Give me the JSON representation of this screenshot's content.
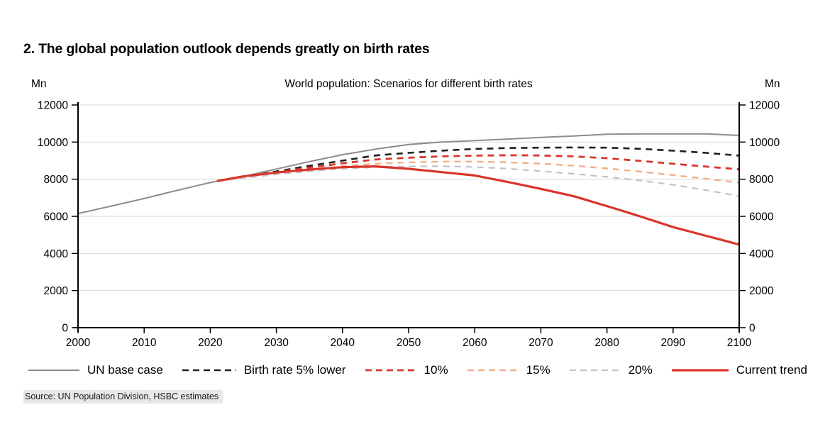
{
  "page": {
    "title": "2. The global population outlook depends greatly on birth rates",
    "source": "Source: UN Population Division, HSBC estimates"
  },
  "chart_data": {
    "type": "line",
    "title": "World population: Scenarios for different birth rates",
    "unit_left": "Mn",
    "unit_right": "Mn",
    "xlabel": "",
    "ylabel": "Mn",
    "xlim": [
      2000,
      2100
    ],
    "ylim": [
      0,
      12000
    ],
    "x_ticks": [
      2000,
      2010,
      2020,
      2030,
      2040,
      2050,
      2060,
      2070,
      2080,
      2090,
      2100
    ],
    "y_ticks": [
      0,
      2000,
      4000,
      6000,
      8000,
      10000,
      12000
    ],
    "grid": "horizontal",
    "grid_color": "#d9d9d9",
    "axis_color": "#000000",
    "legend_position": "bottom",
    "series": [
      {
        "name": "UN base case",
        "color": "#8c8c8c",
        "style": "solid",
        "width": 2,
        "x": [
          2000,
          2005,
          2010,
          2015,
          2020,
          2025,
          2030,
          2035,
          2040,
          2045,
          2050,
          2055,
          2060,
          2065,
          2070,
          2075,
          2080,
          2085,
          2090,
          2095,
          2100
        ],
        "values": [
          6150,
          6550,
          6960,
          7400,
          7820,
          8150,
          8550,
          8950,
          9320,
          9620,
          9870,
          10000,
          10080,
          10160,
          10250,
          10330,
          10420,
          10440,
          10440,
          10440,
          10360
        ]
      },
      {
        "name": "Birth rate 5% lower",
        "color": "#1f1f1f",
        "style": "dashed",
        "width": 2.6,
        "x": [
          2021,
          2025,
          2030,
          2035,
          2040,
          2045,
          2050,
          2055,
          2060,
          2065,
          2070,
          2075,
          2080,
          2085,
          2090,
          2095,
          2100
        ],
        "values": [
          7900,
          8120,
          8420,
          8720,
          9000,
          9280,
          9420,
          9540,
          9630,
          9680,
          9700,
          9710,
          9700,
          9640,
          9540,
          9420,
          9270
        ]
      },
      {
        "name": "10%",
        "color": "#d9352c",
        "style": "dashed",
        "width": 2.8,
        "x": [
          2021,
          2025,
          2030,
          2035,
          2040,
          2045,
          2050,
          2055,
          2060,
          2065,
          2070,
          2075,
          2080,
          2085,
          2090,
          2095,
          2100
        ],
        "values": [
          7900,
          8100,
          8370,
          8620,
          8860,
          9060,
          9160,
          9230,
          9270,
          9290,
          9280,
          9230,
          9130,
          8990,
          8830,
          8680,
          8530
        ]
      },
      {
        "name": "15%",
        "color": "#f2b088",
        "style": "dashed",
        "width": 2.4,
        "x": [
          2021,
          2025,
          2030,
          2035,
          2040,
          2045,
          2050,
          2055,
          2060,
          2065,
          2070,
          2075,
          2080,
          2085,
          2090,
          2095,
          2100
        ],
        "values": [
          7900,
          8080,
          8310,
          8520,
          8700,
          8830,
          8910,
          8950,
          8950,
          8910,
          8840,
          8730,
          8580,
          8410,
          8220,
          8020,
          7820
        ]
      },
      {
        "name": "20%",
        "color": "#c3c3c7",
        "style": "dashed",
        "width": 2.2,
        "x": [
          2021,
          2025,
          2030,
          2035,
          2040,
          2045,
          2050,
          2055,
          2060,
          2065,
          2070,
          2075,
          2080,
          2085,
          2090,
          2095,
          2100
        ],
        "values": [
          7900,
          8060,
          8260,
          8430,
          8560,
          8650,
          8690,
          8700,
          8660,
          8570,
          8440,
          8290,
          8120,
          7930,
          7700,
          7410,
          7090
        ]
      },
      {
        "name": "Current trend",
        "color": "#d9352c",
        "style": "solid",
        "width": 3.2,
        "x": [
          2021,
          2025,
          2030,
          2035,
          2040,
          2045,
          2050,
          2055,
          2060,
          2065,
          2070,
          2075,
          2080,
          2085,
          2090,
          2095,
          2100
        ],
        "values": [
          7900,
          8150,
          8360,
          8520,
          8650,
          8690,
          8560,
          8380,
          8200,
          7850,
          7480,
          7080,
          6550,
          6000,
          5420,
          4950,
          4480
        ]
      }
    ]
  }
}
